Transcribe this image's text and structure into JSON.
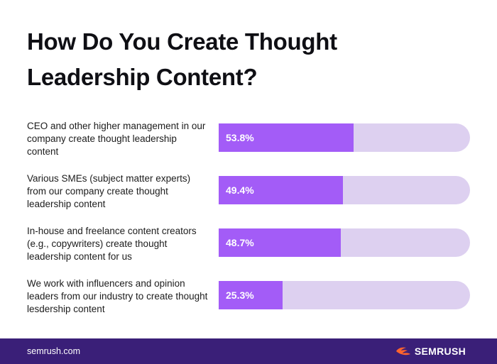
{
  "title": "How Do You Create Thought Leadership Content?",
  "footer": {
    "site": "semrush.com",
    "brand_name": "SEMRUSH",
    "brand_icon": "semrush-flame-logo",
    "brand_color": "#ff642d"
  },
  "colors": {
    "bar_fill": "#a35cf7",
    "bar_track": "#ddd0f0",
    "footer_bg": "#3a1f78"
  },
  "chart_data": {
    "type": "bar",
    "orientation": "horizontal",
    "title": "How Do You Create Thought Leadership Content?",
    "categories": [
      "CEO and other higher management in our company create thought leadership content",
      "Various SMEs (subject matter experts) from our company create thought leadership content",
      "In-house and freelance content creators (e.g., copywriters) create thought leadership content for us",
      "We work with influencers and opinion leaders from our industry to create thought lesdership content"
    ],
    "values": [
      53.8,
      49.4,
      48.7,
      25.3
    ],
    "labels": [
      "53.8%",
      "49.4%",
      "48.7%",
      "25.3%"
    ],
    "xlim": [
      0,
      100
    ],
    "grid": false,
    "legend": "none"
  }
}
